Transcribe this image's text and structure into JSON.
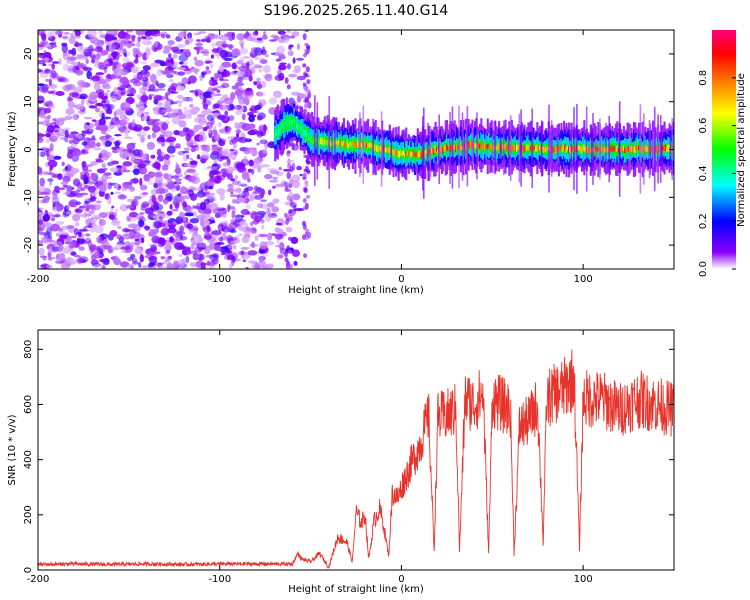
{
  "title": "S196.2025.265.11.40.G14",
  "chart_data": [
    {
      "type": "heatmap",
      "xlabel": "Height of straight line (km)",
      "ylabel": "Frequency (Hz)",
      "xlim": [
        -200,
        150
      ],
      "ylim": [
        -25,
        25
      ],
      "xticks": [
        -200,
        -100,
        0,
        100
      ],
      "xtick_labels": [
        "-200",
        "-100",
        "0",
        "100"
      ],
      "yticks": [
        -20,
        -10,
        0,
        10,
        20
      ],
      "ytick_labels": [
        "-20",
        "-10",
        "0",
        "10",
        "20"
      ],
      "colorbar": {
        "label": "Normalized spectral amplitude",
        "range": [
          0,
          1
        ],
        "ticks": [
          0.0,
          0.2,
          0.4,
          0.6,
          0.8
        ],
        "tick_labels": [
          "0.0",
          "0.2",
          "0.4",
          "0.6",
          "0.8"
        ],
        "colors": [
          "#ffffff",
          "#8a00ff",
          "#0000ff",
          "#00ffff",
          "#00ff00",
          "#ffff00",
          "#ff8000",
          "#ff0000",
          "#ff0080"
        ]
      },
      "noise_region_km": [
        -200,
        -55
      ],
      "ridge": {
        "x_km": [
          -70,
          -65,
          -60,
          -55,
          -50,
          -40,
          -30,
          -20,
          -10,
          0,
          10,
          20,
          30,
          40,
          50,
          60,
          70,
          80,
          90,
          100,
          110,
          120,
          130,
          140,
          150
        ],
        "freq_hz": [
          3,
          5,
          6,
          4,
          2,
          1.5,
          1,
          1,
          0,
          -1,
          -1,
          0,
          0.5,
          0.8,
          0.5,
          0.3,
          0.3,
          0.2,
          0.2,
          0.1,
          0.1,
          0.1,
          0.1,
          0.1,
          0.1
        ],
        "amplitude": [
          0.4,
          0.5,
          0.5,
          0.4,
          0.5,
          0.7,
          0.75,
          0.8,
          0.8,
          0.8,
          0.85,
          0.85,
          0.85,
          0.85,
          0.85,
          0.8,
          0.8,
          0.85,
          0.85,
          0.85,
          0.85,
          0.85,
          0.85,
          0.85,
          0.85
        ]
      }
    },
    {
      "type": "line",
      "xlabel": "Height of straight line (km)",
      "ylabel": "SNR (10 * v/v)",
      "xlim": [
        -200,
        150
      ],
      "ylim": [
        0,
        870
      ],
      "xticks": [
        -200,
        -100,
        0,
        100
      ],
      "xtick_labels": [
        "-200",
        "-100",
        "0",
        "100"
      ],
      "yticks": [
        0,
        200,
        400,
        600,
        800
      ],
      "ytick_labels": [
        "0",
        "200",
        "400",
        "600",
        "800"
      ],
      "series": [
        {
          "name": "SNR",
          "color": "#e8332a",
          "x": [
            -200,
            -180,
            -160,
            -140,
            -120,
            -100,
            -80,
            -60,
            -57,
            -55,
            -50,
            -45,
            -40,
            -35,
            -30,
            -27,
            -25,
            -22,
            -20,
            -18,
            -15,
            -12,
            -10,
            -7,
            -5,
            -2,
            0,
            5,
            10,
            15,
            18,
            20,
            25,
            30,
            32,
            35,
            40,
            45,
            48,
            50,
            55,
            60,
            62,
            65,
            70,
            75,
            78,
            80,
            85,
            90,
            95,
            98,
            100,
            110,
            120,
            130,
            140,
            150
          ],
          "y": [
            20,
            22,
            20,
            22,
            20,
            22,
            22,
            22,
            60,
            40,
            30,
            60,
            10,
            120,
            100,
            30,
            210,
            170,
            200,
            40,
            180,
            220,
            170,
            50,
            280,
            260,
            300,
            380,
            450,
            560,
            70,
            550,
            560,
            580,
            70,
            620,
            600,
            640,
            60,
            620,
            600,
            580,
            60,
            520,
            540,
            600,
            100,
            620,
            640,
            660,
            700,
            80,
            620,
            620,
            580,
            620,
            600,
            580
          ]
        }
      ]
    }
  ]
}
